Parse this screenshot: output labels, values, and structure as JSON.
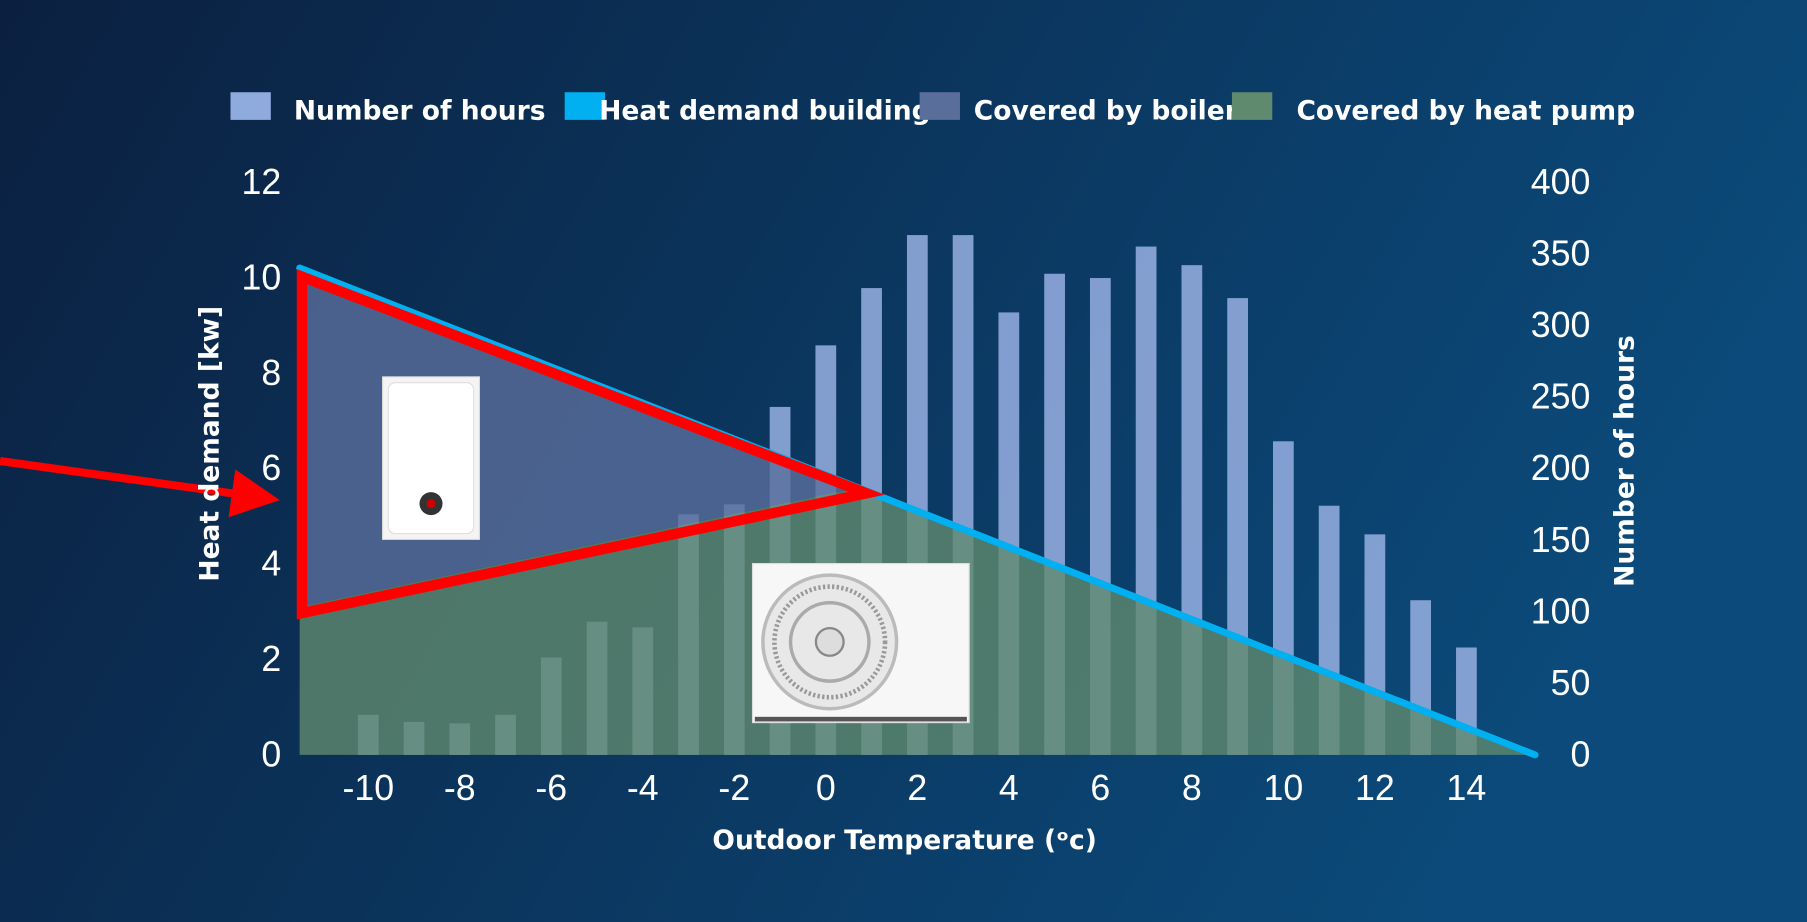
{
  "chart_data": {
    "type": "combo",
    "x_label": "Outdoor Temperature (ᵒc)",
    "y_label": "Heat demand [kw]",
    "y2_label": "Number of hours",
    "xlim": [
      -11.5,
      15.5
    ],
    "xticks": [
      -10,
      -8,
      -6,
      -4,
      -2,
      0,
      2,
      4,
      6,
      8,
      10,
      12,
      14
    ],
    "ylim": [
      0,
      12
    ],
    "yticks": [
      0,
      2,
      4,
      6,
      8,
      10,
      12
    ],
    "y2lim": [
      0,
      400
    ],
    "y2ticks": [
      0,
      50,
      100,
      150,
      200,
      250,
      300,
      350,
      400
    ],
    "legend": "top",
    "series": [
      {
        "name": "Number of hours",
        "type": "bar",
        "axis": "y2",
        "color": "#8faadc",
        "x": [
          -10,
          -9,
          -8,
          -7,
          -6,
          -5,
          -4,
          -3,
          -2,
          -1,
          0,
          1,
          2,
          3,
          4,
          5,
          6,
          7,
          8,
          9,
          10,
          11,
          12,
          13,
          14
        ],
        "values": [
          28,
          23,
          22,
          28,
          68,
          93,
          89,
          168,
          175,
          243,
          286,
          326,
          363,
          363,
          309,
          336,
          333,
          355,
          342,
          319,
          219,
          174,
          154,
          108,
          75
        ]
      },
      {
        "name": "Heat demand building",
        "type": "line",
        "color": "#00b0f0",
        "x": [
          -11.5,
          0.7,
          15.5
        ],
        "values": [
          10.2,
          5.6,
          0
        ]
      },
      {
        "name": "Covered by boiler",
        "type": "area",
        "color": "#5a6e9c",
        "x": [
          -11.5,
          0.7,
          15.5
        ],
        "values": [
          7.1,
          0,
          0
        ]
      },
      {
        "name": "Covered by heat pump",
        "type": "area",
        "color": "#5f8a6e",
        "x": [
          -11.5,
          0.7,
          15.5
        ],
        "values": [
          3.1,
          5.6,
          0
        ]
      }
    ]
  }
}
